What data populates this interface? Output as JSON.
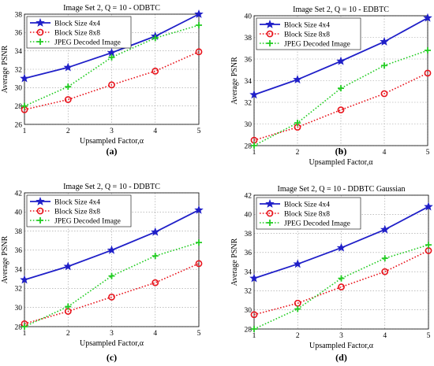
{
  "chart_data": [
    {
      "type": "line",
      "panel_label": "(a)",
      "title": "Image Set 2, Q = 10 - ODBTC",
      "xlabel": "Upsampled Factor,α",
      "ylabel": "Average PSNR",
      "x": [
        1,
        2,
        3,
        4,
        5
      ],
      "xlim": [
        1,
        5
      ],
      "ylim": [
        26,
        38
      ],
      "yticks": [
        26,
        28,
        30,
        32,
        34,
        36,
        38
      ],
      "series": [
        {
          "name": "Block Size 4x4",
          "color": "#1f1fc8",
          "marker": "star",
          "style": "solid",
          "values": [
            31.0,
            32.2,
            33.8,
            35.6,
            38.0
          ]
        },
        {
          "name": "Block Size 8x8",
          "color": "#e8141c",
          "marker": "circle",
          "style": "dotted",
          "values": [
            27.6,
            28.7,
            30.3,
            31.8,
            33.9
          ]
        },
        {
          "name": "JPEG Decoded Image",
          "color": "#22cc22",
          "marker": "plus",
          "style": "dotted",
          "values": [
            28.0,
            30.1,
            33.3,
            35.4,
            36.8
          ]
        }
      ],
      "grid": true,
      "legend": "top-left"
    },
    {
      "type": "line",
      "panel_label": "(b)",
      "title": "Image Set 2, Q = 10 - EDBTC",
      "xlabel": "Upsampled Factor,α",
      "ylabel": "Average PSNR",
      "x": [
        1,
        2,
        3,
        4,
        5
      ],
      "xlim": [
        1,
        5
      ],
      "ylim": [
        28,
        40
      ],
      "yticks": [
        28,
        30,
        32,
        34,
        36,
        38,
        40
      ],
      "series": [
        {
          "name": "Block Size 4x4",
          "color": "#1f1fc8",
          "marker": "star",
          "style": "solid",
          "values": [
            32.7,
            34.1,
            35.8,
            37.6,
            39.8
          ]
        },
        {
          "name": "Block Size 8x8",
          "color": "#e8141c",
          "marker": "circle",
          "style": "dotted",
          "values": [
            28.5,
            29.7,
            31.3,
            32.8,
            34.7
          ]
        },
        {
          "name": "JPEG Decoded Image",
          "color": "#22cc22",
          "marker": "plus",
          "style": "dotted",
          "values": [
            28.0,
            30.1,
            33.3,
            35.4,
            36.8
          ]
        }
      ],
      "grid": true,
      "legend": "top-left"
    },
    {
      "type": "line",
      "panel_label": "(c)",
      "title": "Image Set 2, Q = 10 - DDBTC",
      "xlabel": "Upsampled Factor,α",
      "ylabel": "Average PSNR",
      "x": [
        1,
        2,
        3,
        4,
        5
      ],
      "xlim": [
        1,
        5
      ],
      "ylim": [
        28,
        42
      ],
      "yticks": [
        28,
        30,
        32,
        34,
        36,
        38,
        40,
        42
      ],
      "series": [
        {
          "name": "Block Size 4x4",
          "color": "#1f1fc8",
          "marker": "star",
          "style": "solid",
          "values": [
            32.9,
            34.3,
            36.0,
            37.9,
            40.2
          ]
        },
        {
          "name": "Block Size 8x8",
          "color": "#e8141c",
          "marker": "circle",
          "style": "dotted",
          "values": [
            28.3,
            29.6,
            31.1,
            32.6,
            34.6
          ]
        },
        {
          "name": "JPEG Decoded Image",
          "color": "#22cc22",
          "marker": "plus",
          "style": "dotted",
          "values": [
            28.0,
            30.1,
            33.3,
            35.4,
            36.8
          ]
        }
      ],
      "grid": true,
      "legend": "top-left"
    },
    {
      "type": "line",
      "panel_label": "(d)",
      "title": "Image Set 2, Q = 10 - DDBTC Gaussian",
      "xlabel": "Upsampled Factor,α",
      "ylabel": "Average PSNR",
      "x": [
        1,
        2,
        3,
        4,
        5
      ],
      "xlim": [
        1,
        5
      ],
      "ylim": [
        28,
        42
      ],
      "yticks": [
        28,
        30,
        32,
        34,
        36,
        38,
        40,
        42
      ],
      "series": [
        {
          "name": "Block Size 4x4",
          "color": "#1f1fc8",
          "marker": "star",
          "style": "solid",
          "values": [
            33.3,
            34.8,
            36.5,
            38.4,
            40.8
          ]
        },
        {
          "name": "Block Size 8x8",
          "color": "#e8141c",
          "marker": "circle",
          "style": "dotted",
          "values": [
            29.5,
            30.7,
            32.4,
            34.0,
            36.2
          ]
        },
        {
          "name": "JPEG Decoded Image",
          "color": "#22cc22",
          "marker": "plus",
          "style": "dotted",
          "values": [
            28.0,
            30.1,
            33.3,
            35.4,
            36.8
          ]
        }
      ],
      "grid": true,
      "legend": "top-left"
    }
  ]
}
